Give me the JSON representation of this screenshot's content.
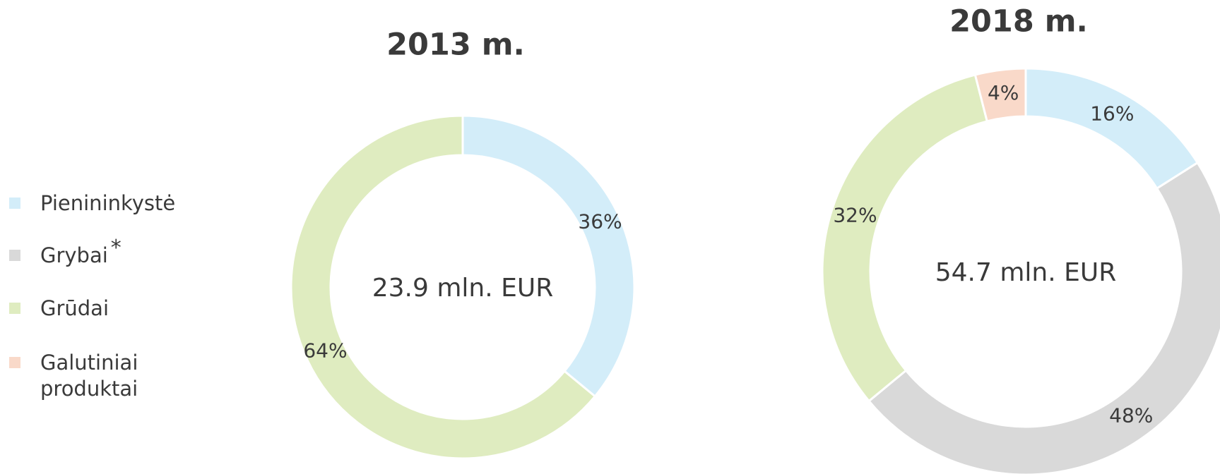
{
  "legend": [
    {
      "label": "Pienininkystė",
      "color": "#d3edf9"
    },
    {
      "label": "Grybai",
      "note": "*",
      "color": "#d9d9d9"
    },
    {
      "label": "Grūdai",
      "color": "#dfecc0"
    },
    {
      "label": "Galutiniai produktai",
      "color": "#f9d9c9"
    }
  ],
  "chart_data": [
    {
      "type": "pie",
      "title": "2013 m.",
      "center_label": "23.9 mln. EUR",
      "categories": [
        "Pienininkystė",
        "Grūdai"
      ],
      "values": [
        36,
        64
      ],
      "value_labels": [
        "36%",
        "64%"
      ],
      "colors": [
        "#d3edf9",
        "#dfecc0"
      ]
    },
    {
      "type": "pie",
      "title": "2018 m.",
      "center_label": "54.7 mln. EUR",
      "categories": [
        "Pienininkystė",
        "Grybai",
        "Grūdai",
        "Galutiniai produktai"
      ],
      "values": [
        16,
        48,
        32,
        4
      ],
      "value_labels": [
        "16%",
        "48%",
        "32%",
        "4%"
      ],
      "colors": [
        "#d3edf9",
        "#d9d9d9",
        "#dfecc0",
        "#f9d9c9"
      ]
    }
  ]
}
